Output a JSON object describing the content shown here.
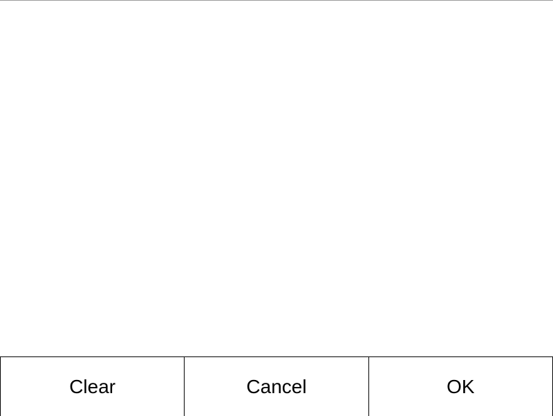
{
  "buttons": {
    "clear_label": "Clear",
    "cancel_label": "Cancel",
    "ok_label": "OK"
  },
  "colors": {
    "background": "#ffffff",
    "border": "#000000",
    "top_border": "#9a9a9a"
  }
}
